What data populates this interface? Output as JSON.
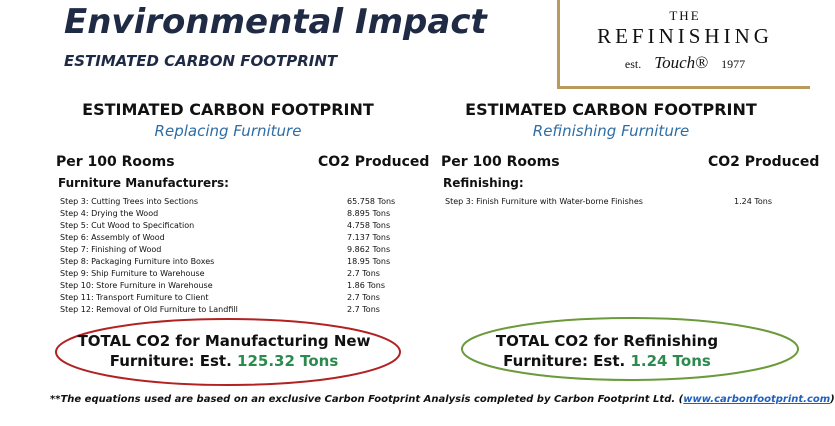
{
  "header": {
    "title": "Environmental Impact",
    "subtitle": "ESTIMATED CARBON FOOTPRINT"
  },
  "logo": {
    "the": "THE",
    "name": "REFINISHING",
    "est": "est.",
    "script": "Touch®",
    "year": "1977"
  },
  "panels": [
    {
      "heading": "ESTIMATED CARBON FOOTPRINT",
      "subheading": "Replacing Furniture",
      "col1": "Per 100 Rooms",
      "col2": "CO2 Produced",
      "group": "Furniture Manufacturers:",
      "rows": [
        [
          "Step 3: Cutting Trees into Sections",
          "65.758 Tons"
        ],
        [
          "Step 4: Drying the Wood",
          "8.895 Tons"
        ],
        [
          "Step 5: Cut Wood to Specification",
          "4.758 Tons"
        ],
        [
          "Step 6: Assembly of Wood",
          "7.137 Tons"
        ],
        [
          "Step 7: Finishing of Wood",
          "9.862 Tons"
        ],
        [
          "Step 8: Packaging Furniture into Boxes",
          "18.95 Tons"
        ],
        [
          "Step 9: Ship Furniture to Warehouse",
          "2.7 Tons"
        ],
        [
          "Step 10: Store Furniture in Warehouse",
          "1.86 Tons"
        ],
        [
          "Step 11: Transport Furniture to Client",
          "2.7 Tons"
        ],
        [
          "Step 12: Removal of Old Furniture to Landfill",
          "2.7 Tons"
        ]
      ],
      "total_line1": "TOTAL CO2 for Manufacturing New",
      "total_line2": "Furniture: Est.",
      "total_value": "125.32 Tons"
    },
    {
      "heading": "ESTIMATED CARBON FOOTPRINT",
      "subheading": "Refinishing Furniture",
      "col1": "Per 100 Rooms",
      "col2": "CO2 Produced",
      "group": "Refinishing:",
      "rows": [
        [
          "Step 3: Finish Furniture with Water-borne Finishes",
          "1.24 Tons"
        ]
      ],
      "total_line1": "TOTAL CO2 for Refinishing",
      "total_line2": "Furniture: Est.",
      "total_value": "1.24 Tons"
    }
  ],
  "footnote": {
    "text": "**The equations used are based on an exclusive Carbon Footprint Analysis completed by Carbon Footprint Ltd. (",
    "link": "www.carbonfootprint.com",
    "close": ")"
  }
}
